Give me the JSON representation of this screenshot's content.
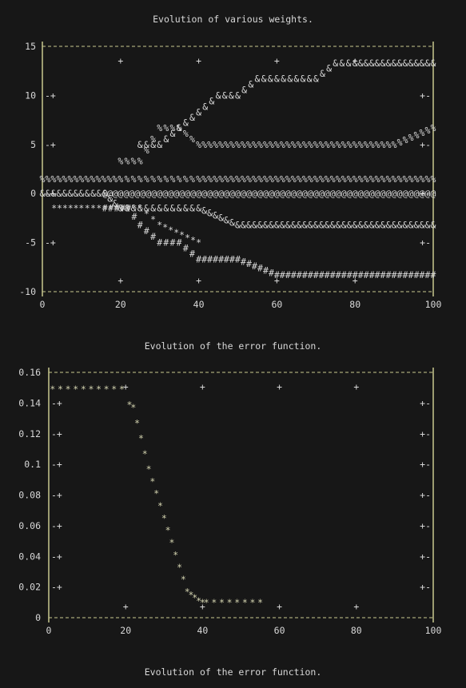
{
  "chart_data": [
    {
      "type": "line",
      "title": "Evolution of various weights.",
      "xlim": [
        0,
        100
      ],
      "ylim": [
        -10,
        15
      ],
      "x_ticks": [
        0,
        20,
        40,
        60,
        80,
        100
      ],
      "y_ticks": [
        15,
        10,
        5,
        0,
        -5,
        -10
      ],
      "grid": false,
      "series": [
        {
          "marker": "%",
          "color": "#d8d8d8",
          "x": [
            0,
            10,
            20,
            25,
            30,
            35,
            40,
            50,
            60,
            70,
            80,
            90,
            100
          ],
          "y": [
            1.5,
            1.5,
            1.5,
            1.5,
            1.5,
            1.5,
            1.5,
            1.5,
            1.5,
            1.5,
            1.5,
            1.5,
            1.5
          ]
        },
        {
          "marker": "&",
          "color": "#d8d8d8",
          "x": [
            0,
            10,
            16,
            20,
            25,
            30,
            35,
            40,
            50,
            60,
            70,
            80,
            90,
            100
          ],
          "y": [
            0,
            0,
            0,
            -1.5,
            -1.5,
            -1.5,
            -1.5,
            -1.5,
            -3.2,
            -3.2,
            -3.2,
            -3.2,
            -3.2,
            -3.2
          ]
        },
        {
          "marker": "@",
          "color": "#d8d8d8",
          "x": [
            16,
            20,
            30,
            40,
            50,
            60,
            70,
            80,
            90,
            100
          ],
          "y": [
            0,
            0,
            0,
            0,
            0,
            0,
            0,
            0,
            0,
            0
          ]
        },
        {
          "marker": "*",
          "color": "#d8d8d8",
          "x": [
            3,
            10,
            16,
            25,
            30,
            40
          ],
          "y": [
            -1.5,
            -1.5,
            -1.5,
            -1.5,
            -3.2,
            -5
          ]
        },
        {
          "marker": "#",
          "color": "#d8d8d8",
          "x": [
            16,
            22,
            25,
            30,
            35,
            40,
            50,
            60,
            70,
            80,
            90,
            100
          ],
          "y": [
            -1.5,
            -1.5,
            -3.2,
            -5,
            -5,
            -6.7,
            -6.7,
            -8.3,
            -8.3,
            -8.3,
            -8.3,
            -8.3
          ]
        },
        {
          "marker": "%",
          "color": "#d8d8d8",
          "x": [
            20,
            25,
            30,
            35,
            40,
            50,
            60,
            70,
            80,
            90,
            100
          ],
          "y": [
            3.3,
            3.3,
            6.7,
            6.7,
            5,
            5,
            5,
            5,
            5,
            5,
            6.7
          ]
        },
        {
          "marker": "&",
          "color": "#d8d8d8",
          "x": [
            25,
            30,
            35,
            40,
            45,
            50,
            55,
            60,
            65,
            70,
            75,
            80,
            90,
            100
          ],
          "y": [
            5,
            5,
            6.7,
            8.3,
            10,
            10,
            11.7,
            11.7,
            11.7,
            11.7,
            13.3,
            13.3,
            13.3,
            13.3
          ]
        }
      ]
    },
    {
      "type": "scatter",
      "title": "Evolution of the error function.",
      "xlim": [
        0,
        100
      ],
      "ylim": [
        0,
        0.16
      ],
      "x_ticks": [
        0,
        20,
        40,
        60,
        80,
        100
      ],
      "y_ticks": [
        0.16,
        0.14,
        0.12,
        0.1,
        0.08,
        0.06,
        0.04,
        0.02,
        0
      ],
      "y_tick_labels": [
        "0.16",
        "0.14",
        "0.12",
        "0.1",
        "0.08",
        "0.06",
        "0.04",
        "0.02",
        "0"
      ],
      "grid": false,
      "series": [
        {
          "marker": "*",
          "color": "#d4d4b0",
          "x": [
            1,
            3,
            5,
            7,
            9,
            11,
            13,
            15,
            17,
            19,
            21,
            22,
            23,
            24,
            25,
            26,
            27,
            28,
            29,
            30,
            31,
            32,
            33,
            34,
            35,
            36,
            37,
            38,
            39,
            40,
            41,
            43,
            45,
            47,
            49,
            51,
            53,
            55
          ],
          "y": [
            0.15,
            0.15,
            0.15,
            0.15,
            0.15,
            0.15,
            0.15,
            0.15,
            0.15,
            0.15,
            0.14,
            0.138,
            0.128,
            0.118,
            0.108,
            0.098,
            0.09,
            0.082,
            0.074,
            0.066,
            0.058,
            0.05,
            0.042,
            0.034,
            0.026,
            0.018,
            0.016,
            0.014,
            0.012,
            0.011,
            0.011,
            0.011,
            0.011,
            0.011,
            0.011,
            0.011,
            0.011,
            0.011
          ]
        }
      ]
    }
  ],
  "footer": {
    "text": "Evolution of the error function."
  }
}
